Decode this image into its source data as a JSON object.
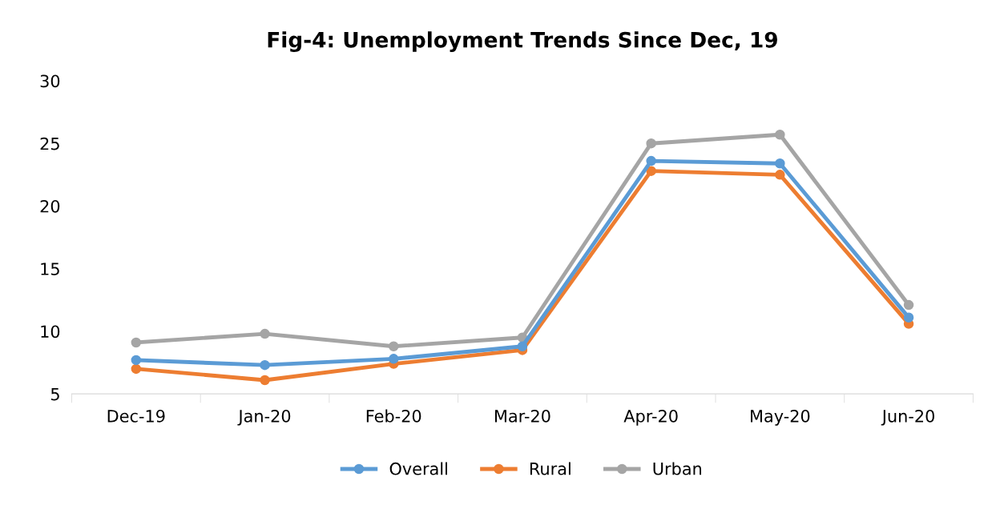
{
  "chart_data": {
    "type": "line",
    "title": "Fig-4: Unemployment Trends Since Dec, 19",
    "categories": [
      "Dec-19",
      "Jan-20",
      "Feb-20",
      "Mar-20",
      "Apr-20",
      "May-20",
      "Jun-20"
    ],
    "series": [
      {
        "name": "Overall",
        "color": "#5b9bd5",
        "values": [
          7.7,
          7.3,
          7.8,
          8.8,
          23.6,
          23.4,
          11.1
        ]
      },
      {
        "name": "Rural",
        "color": "#ed7d31",
        "values": [
          7.0,
          6.1,
          7.4,
          8.5,
          22.8,
          22.5,
          10.6
        ]
      },
      {
        "name": "Urban",
        "color": "#a5a5a5",
        "values": [
          9.1,
          9.8,
          8.8,
          9.5,
          25.0,
          25.7,
          12.1
        ]
      }
    ],
    "ylim": [
      5,
      30
    ],
    "yticks": [
      5,
      10,
      15,
      20,
      25,
      30
    ],
    "grid": false,
    "legend": "bottom",
    "marker": "circle",
    "line_style": "solid"
  }
}
